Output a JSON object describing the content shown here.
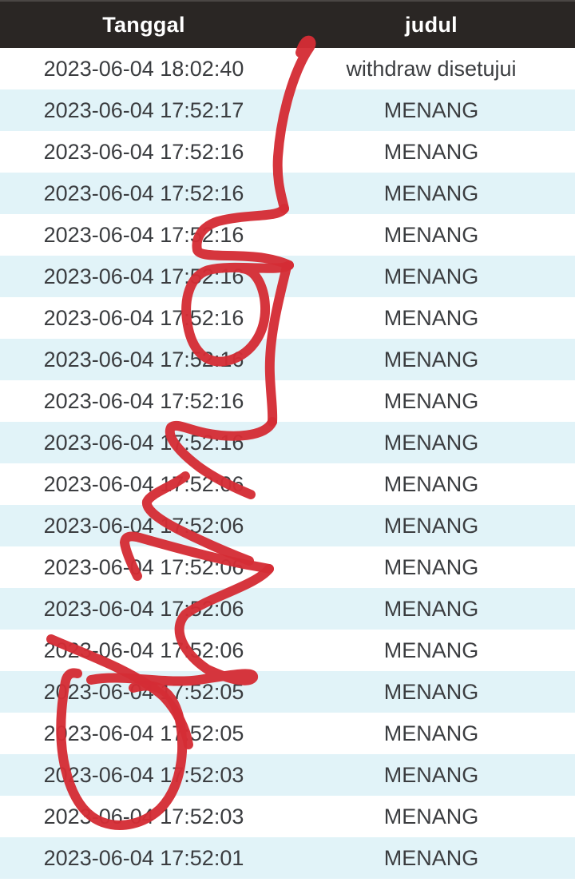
{
  "table": {
    "header": {
      "tanggal_label": "Tanggal",
      "judul_label": "judul"
    },
    "rows": [
      {
        "tanggal": "2023-06-04 18:02:40",
        "judul": "withdraw disetujui"
      },
      {
        "tanggal": "2023-06-04 17:52:17",
        "judul": "MENANG"
      },
      {
        "tanggal": "2023-06-04 17:52:16",
        "judul": "MENANG"
      },
      {
        "tanggal": "2023-06-04 17:52:16",
        "judul": "MENANG"
      },
      {
        "tanggal": "2023-06-04 17:52:16",
        "judul": "MENANG"
      },
      {
        "tanggal": "2023-06-04 17:52:16",
        "judul": "MENANG"
      },
      {
        "tanggal": "2023-06-04 17:52:16",
        "judul": "MENANG"
      },
      {
        "tanggal": "2023-06-04 17:52:16",
        "judul": "MENANG"
      },
      {
        "tanggal": "2023-06-04 17:52:16",
        "judul": "MENANG"
      },
      {
        "tanggal": "2023-06-04 17:52:16",
        "judul": "MENANG"
      },
      {
        "tanggal": "2023-06-04 17:52:06",
        "judul": "MENANG"
      },
      {
        "tanggal": "2023-06-04 17:52:06",
        "judul": "MENANG"
      },
      {
        "tanggal": "2023-06-04 17:52:06",
        "judul": "MENANG"
      },
      {
        "tanggal": "2023-06-04 17:52:06",
        "judul": "MENANG"
      },
      {
        "tanggal": "2023-06-04 17:52:06",
        "judul": "MENANG"
      },
      {
        "tanggal": "2023-06-04 17:52:05",
        "judul": "MENANG"
      },
      {
        "tanggal": "2023-06-04 17:52:05",
        "judul": "MENANG"
      },
      {
        "tanggal": "2023-06-04 17:52:03",
        "judul": "MENANG"
      },
      {
        "tanggal": "2023-06-04 17:52:03",
        "judul": "MENANG"
      },
      {
        "tanggal": "2023-06-04 17:52:01",
        "judul": "MENANG"
      }
    ]
  },
  "colors": {
    "header_bg": "#2a2624",
    "header_text": "#ffffff",
    "row_bg": "#ffffff",
    "stripe_bg": "#e1f3f8",
    "row_text": "#3b3d40",
    "annotation_red": "#d42d35"
  },
  "annotation": {
    "name": "red-pen-scribble",
    "stroke_width": 12,
    "paths": [
      "M 376 66 C 379 55 384 49 388 51 C 391 54 389 58 386 62 C 369 88 352 140 348 196 C 346 228 353 247 356 261",
      "M 356 261 C 348 273 311 267 273 277 C 254 283 244 297 247 313 C 252 324 291 317 331 323 C 344 325 356 329 362 332",
      "M 362 332 C 350 341 292 330 261 338 C 238 345 229 374 235 407 C 241 441 260 458 287 451 C 316 443 337 413 331 373 C 327 351 317 337 303 336",
      "M 359 334 C 350 372 336 422 338 469 C 339 496 342 513 341 528",
      "M 341 528 C 332 547 292 549 257 542 C 233 537 221 529 214 535 C 208 547 226 567 250 585 C 271 600 297 612 314 619",
      "M 232 596 C 216 609 189 617 184 628 C 182 638 200 651 226 664 C 252 677 286 692 312 702",
      "M 172 721 C 164 705 157 688 156 679 C 157 671 163 670 175 673 C 210 683 265 698 310 707 C 322 709 332 711 337 712",
      "M 337 712 C 320 733 260 748 232 769 C 214 789 231 819 260 838 C 288 851 312 856 317 848 C 319 839 289 845 249 851 C 206 857 153 843 114 851",
      "M 97 843 C 89 841 84 844 82 853 C 76 886 73 926 82 963 C 90 996 104 1020 128 1029 C 152 1038 180 1031 200 1013 C 216 997 226 973 228 941 C 229 911 224 885 211 870 C 198 856 181 857 167 861",
      "M 64 800 C 110 820 170 841 205 872 C 222 890 233 913 236 932"
    ]
  }
}
